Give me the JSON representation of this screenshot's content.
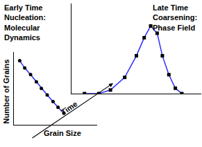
{
  "chart_data": [
    {
      "type": "line",
      "title": "Early Time Nucleation: Molecular Dynamics",
      "x_label": "Grain Size",
      "y_label": "Number of Grains",
      "annotation": "Time",
      "x": [
        7,
        13,
        20,
        27,
        33,
        40,
        47,
        53,
        60
      ],
      "values": [
        88,
        78,
        69,
        59,
        50,
        41,
        32,
        24,
        16
      ],
      "xlim": [
        0,
        100
      ],
      "ylim": [
        0,
        100
      ],
      "color": "#2b2bff",
      "marker": "circle",
      "grid": false,
      "tick_labels": false
    },
    {
      "type": "line",
      "title": "Late Time Coarsening: Phase Field",
      "x": [
        10,
        21,
        30,
        41,
        50,
        56,
        61,
        66,
        70,
        75,
        80,
        85
      ],
      "values": [
        0,
        0,
        4,
        18,
        42,
        62,
        75,
        67,
        42,
        21,
        6,
        0
      ],
      "xlim": [
        0,
        100
      ],
      "ylim": [
        0,
        100
      ],
      "color": "#2b2bff",
      "marker": "square",
      "grid": false,
      "tick_labels": false
    }
  ]
}
